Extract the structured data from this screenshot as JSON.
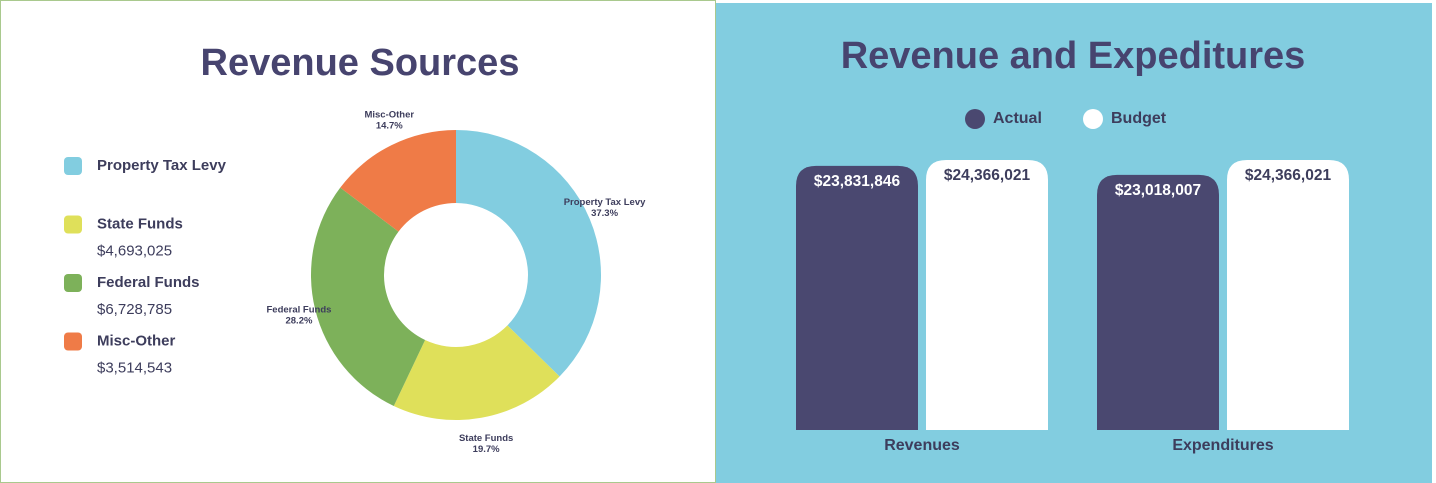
{
  "chart_data": [
    {
      "type": "donut",
      "title": "Revenue Sources",
      "categories": [
        "Property Tax Levy",
        "State Funds",
        "Federal Funds",
        "Misc-Other"
      ],
      "values": [
        37.3,
        19.7,
        28.2,
        14.7
      ],
      "value_labels": [
        "37.3%",
        "19.7%",
        "28.2%",
        "14.7%"
      ],
      "colors": [
        "#82cde0",
        "#dfe05a",
        "#7db15a",
        "#ef7b47"
      ],
      "amount_labels": [
        null,
        "$4,693,025",
        "$6,728,785",
        "$3,514,543"
      ]
    },
    {
      "type": "bar",
      "title": "Revenue and Expeditures",
      "categories": [
        "Revenues",
        "Expenditures"
      ],
      "series": [
        {
          "name": "Actual",
          "color": "#4a4870",
          "values": [
            23831846,
            23018007
          ],
          "value_labels": [
            "$23,831,846",
            "$23,018,007"
          ]
        },
        {
          "name": "Budget",
          "color": "#ffffff",
          "values": [
            24366021,
            24366021
          ],
          "value_labels": [
            "$24,366,021",
            "$24,366,021"
          ]
        }
      ]
    }
  ]
}
